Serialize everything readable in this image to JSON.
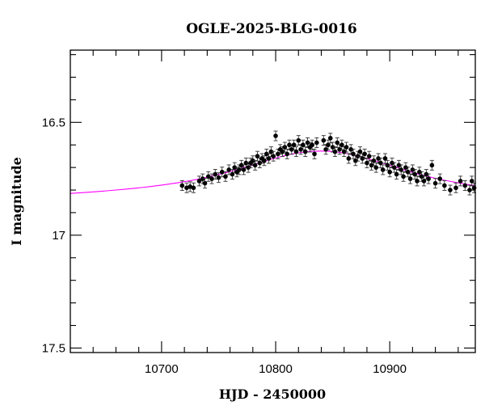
{
  "chart_data": {
    "type": "scatter",
    "title": "OGLE-2025-BLG-0016",
    "xlabel": "HJD - 2450000",
    "ylabel": "I magnitude",
    "xlim": [
      10620,
      10975
    ],
    "ylim": [
      17.52,
      16.18
    ],
    "y_inverted": true,
    "grid": false,
    "x_ticks": [
      10700,
      10800,
      10900
    ],
    "x_tick_labels": [
      "10700",
      "10800",
      "10900"
    ],
    "y_ticks": [
      16.5,
      17,
      17.5
    ],
    "y_tick_labels": [
      "16.5",
      "17",
      "17.5"
    ],
    "x_minor_step": 20,
    "y_minor_step": 0.1,
    "model_color": "#ff00ff",
    "point_color": "#000000",
    "model": {
      "x": [
        10620,
        10640,
        10660,
        10680,
        10700,
        10720,
        10740,
        10760,
        10780,
        10800,
        10820,
        10840,
        10860,
        10880,
        10900,
        10920,
        10940,
        10960,
        10975
      ],
      "y": [
        16.815,
        16.808,
        16.8,
        16.79,
        16.778,
        16.763,
        16.743,
        16.718,
        16.688,
        16.658,
        16.635,
        16.627,
        16.636,
        16.66,
        16.69,
        16.722,
        16.748,
        16.768,
        16.781
      ]
    },
    "observations": {
      "x": [
        10718,
        10722,
        10725,
        10728,
        10733,
        10736,
        10738,
        10741,
        10744,
        10747,
        10750,
        10753,
        10756,
        10759,
        10762,
        10764,
        10766,
        10768,
        10770,
        10772,
        10774,
        10776,
        10778,
        10780,
        10782,
        10784,
        10786,
        10788,
        10790,
        10792,
        10794,
        10796,
        10798,
        10800,
        10802,
        10804,
        10806,
        10808,
        10810,
        10812,
        10814,
        10816,
        10818,
        10820,
        10822,
        10824,
        10826,
        10828,
        10830,
        10832,
        10834,
        10836,
        10842,
        10844,
        10846,
        10848,
        10850,
        10852,
        10854,
        10856,
        10858,
        10860,
        10862,
        10864,
        10866,
        10868,
        10870,
        10872,
        10874,
        10876,
        10878,
        10880,
        10882,
        10884,
        10886,
        10888,
        10890,
        10892,
        10894,
        10896,
        10898,
        10900,
        10902,
        10904,
        10906,
        10908,
        10910,
        10912,
        10914,
        10916,
        10918,
        10920,
        10922,
        10924,
        10926,
        10928,
        10930,
        10932,
        10934,
        10937,
        10940,
        10944,
        10948,
        10953,
        10958,
        10962,
        10966,
        10970,
        10972,
        10974
      ],
      "y": [
        16.78,
        16.79,
        16.785,
        16.79,
        16.76,
        16.75,
        16.77,
        16.74,
        16.75,
        16.73,
        16.745,
        16.72,
        16.74,
        16.71,
        16.73,
        16.7,
        16.72,
        16.71,
        16.69,
        16.71,
        16.68,
        16.7,
        16.68,
        16.67,
        16.69,
        16.65,
        16.68,
        16.66,
        16.67,
        16.64,
        16.66,
        16.63,
        16.65,
        16.56,
        16.64,
        16.62,
        16.63,
        16.61,
        16.64,
        16.6,
        16.62,
        16.6,
        16.63,
        16.58,
        16.62,
        16.6,
        16.63,
        16.59,
        16.61,
        16.6,
        16.64,
        16.59,
        16.58,
        16.62,
        16.6,
        16.57,
        16.61,
        16.63,
        16.59,
        16.62,
        16.6,
        16.63,
        16.61,
        16.66,
        16.62,
        16.64,
        16.67,
        16.65,
        16.63,
        16.66,
        16.64,
        16.68,
        16.65,
        16.69,
        16.67,
        16.7,
        16.66,
        16.68,
        16.71,
        16.66,
        16.69,
        16.72,
        16.68,
        16.7,
        16.73,
        16.69,
        16.71,
        16.74,
        16.7,
        16.72,
        16.75,
        16.71,
        16.73,
        16.76,
        16.72,
        16.74,
        16.76,
        16.73,
        16.75,
        16.69,
        16.77,
        16.75,
        16.78,
        16.8,
        16.79,
        16.76,
        16.78,
        16.8,
        16.76,
        16.79
      ]
    }
  }
}
